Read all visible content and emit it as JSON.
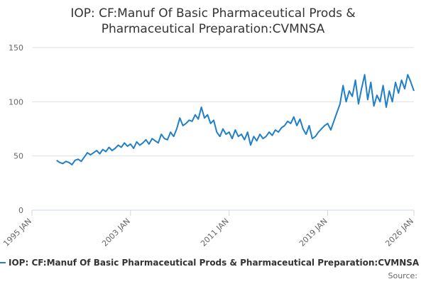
{
  "chart_data": {
    "type": "line",
    "title": "IOP: CF:Manuf Of Basic Pharmaceutical Prods & Pharmaceutical Preparation:CVMNSA",
    "x": [
      "1997-01",
      "1997-04",
      "1997-07",
      "1997-10",
      "1998-01",
      "1998-04",
      "1998-07",
      "1998-10",
      "1999-01",
      "1999-04",
      "1999-07",
      "1999-10",
      "2000-01",
      "2000-04",
      "2000-07",
      "2000-10",
      "2001-01",
      "2001-04",
      "2001-07",
      "2001-10",
      "2002-01",
      "2002-04",
      "2002-07",
      "2002-10",
      "2003-01",
      "2003-04",
      "2003-07",
      "2003-10",
      "2004-01",
      "2004-04",
      "2004-07",
      "2004-10",
      "2005-01",
      "2005-04",
      "2005-07",
      "2005-10",
      "2006-01",
      "2006-04",
      "2006-07",
      "2006-10",
      "2007-01",
      "2007-04",
      "2007-07",
      "2007-10",
      "2008-01",
      "2008-04",
      "2008-07",
      "2008-10",
      "2009-01",
      "2009-04",
      "2009-07",
      "2009-10",
      "2010-01",
      "2010-04",
      "2010-07",
      "2010-10",
      "2011-01",
      "2011-04",
      "2011-07",
      "2011-10",
      "2012-01",
      "2012-04",
      "2012-07",
      "2012-10",
      "2013-01",
      "2013-04",
      "2013-07",
      "2013-10",
      "2014-01",
      "2014-04",
      "2014-07",
      "2014-10",
      "2015-01",
      "2015-04",
      "2015-07",
      "2015-10",
      "2016-01",
      "2016-04",
      "2016-07",
      "2016-10",
      "2017-01",
      "2017-04",
      "2017-07",
      "2017-10",
      "2018-01",
      "2018-04",
      "2018-07",
      "2018-10",
      "2019-01",
      "2019-04",
      "2019-07",
      "2019-10",
      "2020-01",
      "2020-04",
      "2020-07",
      "2020-10",
      "2021-01",
      "2021-04",
      "2021-07",
      "2021-10",
      "2022-01",
      "2022-04",
      "2022-07",
      "2022-10",
      "2023-01",
      "2023-04",
      "2023-07",
      "2023-10",
      "2024-01",
      "2024-04",
      "2024-07",
      "2024-10",
      "2025-01",
      "2025-04",
      "2025-07",
      "2025-10",
      "2026-01"
    ],
    "series": [
      {
        "name": "IOP: CF:Manuf Of Basic Pharmaceutical Prods & Pharmaceutical Preparation:CVMNSA",
        "color": "#1f7fc7",
        "values": [
          46,
          44,
          43,
          45,
          44,
          42,
          46,
          47,
          45,
          49,
          53,
          51,
          53,
          55,
          52,
          56,
          54,
          58,
          55,
          57,
          60,
          58,
          62,
          59,
          61,
          57,
          63,
          60,
          62,
          65,
          61,
          66,
          64,
          62,
          70,
          66,
          65,
          72,
          68,
          75,
          85,
          78,
          80,
          83,
          82,
          88,
          84,
          95,
          85,
          88,
          80,
          83,
          72,
          68,
          75,
          70,
          72,
          66,
          74,
          68,
          70,
          65,
          72,
          60,
          68,
          64,
          70,
          66,
          68,
          72,
          69,
          74,
          72,
          76,
          78,
          82,
          80,
          86,
          78,
          84,
          75,
          70,
          78,
          66,
          68,
          72,
          75,
          78,
          80,
          74,
          82,
          90,
          98,
          115,
          100,
          110,
          105,
          120,
          98,
          112,
          125,
          102,
          118,
          96,
          106,
          100,
          115,
          95,
          110,
          100,
          118,
          108,
          120,
          112,
          125,
          118,
          110
        ]
      }
    ],
    "xlim": [
      "1995-01",
      "2026-01"
    ],
    "xticks": [
      {
        "value": "1995-01",
        "label": "1995 JAN"
      },
      {
        "value": "2003-01",
        "label": "2003 JAN"
      },
      {
        "value": "2011-01",
        "label": "2011 JAN"
      },
      {
        "value": "2019-01",
        "label": "2019 JAN"
      },
      {
        "value": "2026-01",
        "label": "2026 JAN"
      }
    ],
    "ylim": [
      0,
      150
    ],
    "yticks": [
      0,
      50,
      100,
      150
    ],
    "grid": true,
    "source": "Source:"
  }
}
